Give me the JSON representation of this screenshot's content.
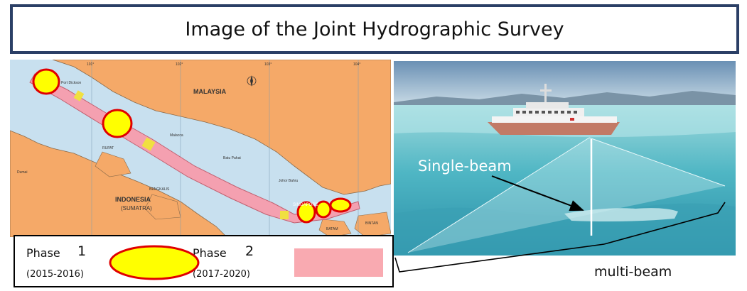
{
  "title": "Image of the Joint Hydrographic Survey",
  "map": {
    "country_north": "MALAYSIA",
    "country_south_1": "INDONESIA",
    "country_south_2": "(SUMATRA)",
    "city": "SINGAPORE",
    "place_labels": [
      "Port Dickson",
      "Malacca",
      "Batu Pahat",
      "Johor Bahru",
      "Dumai",
      "BENGKALIS",
      "RUPAT",
      "BATAM",
      "BINTAN"
    ],
    "grid_labels": [
      "101°",
      "102°",
      "103°",
      "104°"
    ],
    "colors": {
      "sea": "#c8e0ef",
      "land": "#f5a968",
      "route": "#f4a0b0",
      "phase1": "#ffff00",
      "phase1_border": "#e00000"
    }
  },
  "legend": {
    "phase1": {
      "label": "Phase",
      "num": "1",
      "years": "(2015-2016)"
    },
    "phase2": {
      "label": "Phase",
      "num": "2",
      "years": "(2017-2020)"
    }
  },
  "survey": {
    "single_beam": "Single-beam",
    "multi_beam": "multi-beam"
  }
}
